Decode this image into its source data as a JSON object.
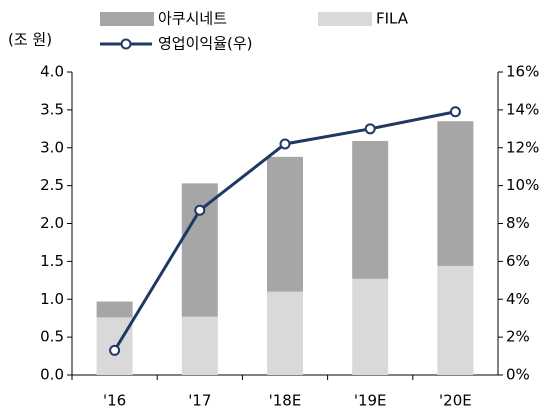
{
  "chart_data": {
    "type": "bar",
    "stacked": true,
    "y_label": "(조 원)",
    "categories": [
      "'16",
      "'17",
      "'18E",
      "'19E",
      "'20E"
    ],
    "series": [
      {
        "name": "FILA",
        "color": "#d9d9d9",
        "values": [
          0.76,
          0.77,
          1.1,
          1.27,
          1.44
        ]
      },
      {
        "name": "아쿠시네트",
        "color": "#a6a6a6",
        "values": [
          0.21,
          1.76,
          1.78,
          1.82,
          1.91
        ]
      },
      {
        "name": "영업이익율(우)",
        "color": "#1f3864",
        "type": "line",
        "axis": "y2",
        "values": [
          1.3,
          8.7,
          12.2,
          13.0,
          13.9
        ]
      }
    ],
    "ylim": [
      0,
      4
    ],
    "yticks": [
      {
        "value": 0,
        "label": "0.0"
      },
      0.5,
      {
        "value": 1,
        "label": "1.0"
      },
      1.5,
      {
        "value": 2,
        "label": "2.0"
      },
      2.5,
      {
        "value": 3,
        "label": "3.0"
      },
      3.5,
      {
        "value": 4,
        "label": "4.0"
      }
    ],
    "y2lim": [
      0,
      16
    ],
    "y2ticks": [
      {
        "value": 0,
        "label": "0%"
      },
      {
        "value": 2,
        "label": "2%"
      },
      {
        "value": 4,
        "label": "4%"
      },
      {
        "value": 6,
        "label": "6%"
      },
      {
        "value": 8,
        "label": "8%"
      },
      {
        "value": 10,
        "label": "10%"
      },
      {
        "value": 12,
        "label": "12%"
      },
      {
        "value": 14,
        "label": "14%"
      },
      {
        "value": 16,
        "label": "16%"
      }
    ],
    "grid": false
  }
}
